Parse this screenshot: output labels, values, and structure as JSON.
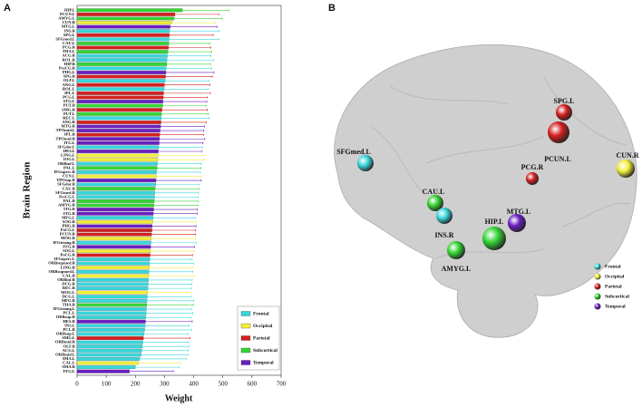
{
  "panels": [
    "A",
    "B"
  ],
  "chart_data": {
    "type": "bar",
    "orientation": "horizontal",
    "xlabel": "Weight",
    "ylabel": "Brain Region",
    "xlim": [
      0,
      700
    ],
    "xticks": [
      0,
      100,
      200,
      300,
      400,
      500,
      600,
      700
    ],
    "categories": [
      "HIP.L",
      "PCUN.L",
      "AMYG.L",
      "CUN.R",
      "MTG.L",
      "INS.R",
      "SPG.L",
      "SFGmed.L",
      "CAU.L",
      "PCG.R",
      "THA.L",
      "ACG.R",
      "ROL.R",
      "HIP.R",
      "PreCG.R",
      "PHG.L",
      "SPG.R",
      "OLF.L",
      "ANG.L",
      "ROL.L",
      "IPL.L",
      "PCG.L",
      "STG.L",
      "PUT.R",
      "SMG.R",
      "PUT.L",
      "REC.L",
      "ANG.R",
      "MTG.R",
      "TPOmid.L",
      "IPL.R",
      "TPOmid.R",
      "ITG.L",
      "SFGdor.L",
      "HES.L",
      "LING.L",
      "IOG.L",
      "ORBinf.L",
      "PAL.L",
      "IFGoperc.R",
      "CUN.L",
      "TPOsup.R",
      "SFGdor.R",
      "CAU.R",
      "SFGmed.R",
      "PreCG.L",
      "PAL.R",
      "AMYG.R",
      "ITG.R",
      "STG.R",
      "MFG.L",
      "SOG.R",
      "PHG.R",
      "PoCG.L",
      "PCUN.R",
      "MOG.R",
      "IFGtriang.R",
      "FFG.R",
      "SOG.L",
      "PoCG.R",
      "IFGoperc.L",
      "ORBsupmed.R",
      "LING.R",
      "ORBsupmed.L",
      "CAL.R",
      "ORBinf.R",
      "DCG.R",
      "REC.R",
      "MOG.L",
      "DCG.L",
      "MFG.R",
      "THA.R",
      "IFGtriang.L",
      "PCL.L",
      "ORBsup.R",
      "HES.R",
      "INS.L",
      "PCL.R",
      "ORBsup.L",
      "SMG.L",
      "ORBmid.R",
      "OLF.R",
      "ACG.L",
      "ORBmid.L",
      "SMA.L",
      "CAL.L",
      "SMA.R",
      "FFG.L"
    ],
    "values": [
      362,
      336,
      333,
      325,
      320,
      318,
      317,
      316,
      315,
      314,
      312,
      310,
      309,
      308,
      306,
      305,
      304,
      302,
      300,
      299,
      297,
      296,
      295,
      294,
      292,
      290,
      289,
      288,
      287,
      285,
      284,
      283,
      282,
      280,
      279,
      278,
      277,
      276,
      275,
      273,
      272,
      271,
      270,
      268,
      267,
      266,
      265,
      264,
      263,
      262,
      261,
      260,
      258,
      257,
      256,
      255,
      254,
      253,
      252,
      251,
      250,
      249,
      248,
      247,
      246,
      245,
      244,
      243,
      242,
      241,
      240,
      239,
      238,
      237,
      236,
      235,
      234,
      232,
      230,
      228,
      226,
      224,
      222,
      220,
      215,
      210,
      200,
      180
    ],
    "errors": [
      158,
      150,
      165,
      150,
      160,
      170,
      150,
      170,
      140,
      145,
      150,
      150,
      160,
      150,
      155,
      165,
      160,
      150,
      155,
      150,
      160,
      150,
      150,
      150,
      155,
      160,
      165,
      155,
      150,
      150,
      150,
      155,
      150,
      150,
      150,
      160,
      160,
      150,
      150,
      150,
      155,
      155,
      150,
      150,
      150,
      150,
      150,
      150,
      150,
      150,
      145,
      150,
      150,
      150,
      150,
      150,
      155,
      150,
      150,
      145,
      145,
      150,
      150,
      150,
      155,
      150,
      150,
      150,
      150,
      150,
      160,
      160,
      155,
      160,
      155,
      160,
      150,
      160,
      150,
      160,
      155,
      160,
      160,
      160,
      160,
      145,
      150,
      150
    ],
    "colors": [
      "#35d435",
      "#d42020",
      "#35d435",
      "#f2ee3a",
      "#6a1fc0",
      "#38d6dc",
      "#d42020",
      "#38d6dc",
      "#35d435",
      "#d42020",
      "#35d435",
      "#38d6dc",
      "#38d6dc",
      "#35d435",
      "#38d6dc",
      "#6a1fc0",
      "#d42020",
      "#38d6dc",
      "#d42020",
      "#38d6dc",
      "#d42020",
      "#d42020",
      "#6a1fc0",
      "#35d435",
      "#d42020",
      "#35d435",
      "#38d6dc",
      "#d42020",
      "#6a1fc0",
      "#6a1fc0",
      "#d42020",
      "#6a1fc0",
      "#6a1fc0",
      "#38d6dc",
      "#6a1fc0",
      "#f2ee3a",
      "#f2ee3a",
      "#38d6dc",
      "#35d435",
      "#38d6dc",
      "#f2ee3a",
      "#6a1fc0",
      "#38d6dc",
      "#35d435",
      "#38d6dc",
      "#38d6dc",
      "#35d435",
      "#35d435",
      "#6a1fc0",
      "#6a1fc0",
      "#38d6dc",
      "#f2ee3a",
      "#6a1fc0",
      "#d42020",
      "#d42020",
      "#f2ee3a",
      "#38d6dc",
      "#6a1fc0",
      "#f2ee3a",
      "#d42020",
      "#38d6dc",
      "#38d6dc",
      "#f2ee3a",
      "#38d6dc",
      "#f2ee3a",
      "#38d6dc",
      "#38d6dc",
      "#38d6dc",
      "#f2ee3a",
      "#38d6dc",
      "#38d6dc",
      "#35d435",
      "#38d6dc",
      "#38d6dc",
      "#38d6dc",
      "#6a1fc0",
      "#38d6dc",
      "#38d6dc",
      "#38d6dc",
      "#d42020",
      "#38d6dc",
      "#38d6dc",
      "#38d6dc",
      "#38d6dc",
      "#38d6dc",
      "#f2ee3a",
      "#38d6dc",
      "#6a1fc0"
    ],
    "legend": [
      {
        "name": "Frontal",
        "color": "#38d6dc"
      },
      {
        "name": "Occipital",
        "color": "#f2ee3a"
      },
      {
        "name": "Parietal",
        "color": "#d42020"
      },
      {
        "name": "Subcortical",
        "color": "#35d435"
      },
      {
        "name": "Temporal",
        "color": "#6a1fc0"
      }
    ]
  },
  "panel_b": {
    "nodes": [
      {
        "label": "SFGmed.L",
        "color": "#38d6dc"
      },
      {
        "label": "SPG.L",
        "color": "#d42020"
      },
      {
        "label": "PCUN.L",
        "color": "#d42020"
      },
      {
        "label": "CUN.R",
        "color": "#f2ee3a"
      },
      {
        "label": "PCG.R",
        "color": "#d42020"
      },
      {
        "label": "CAU.L",
        "color": "#35d435"
      },
      {
        "label": "INS.R",
        "color": "#38d6dc"
      },
      {
        "label": "MTG.L",
        "color": "#6a1fc0"
      },
      {
        "label": "HIP.L",
        "color": "#35d435"
      },
      {
        "label": "AMYG.L",
        "color": "#35d435"
      }
    ],
    "legend": [
      "Frontal",
      "Occipital",
      "Parietal",
      "Subcortical",
      "Temporal"
    ]
  }
}
